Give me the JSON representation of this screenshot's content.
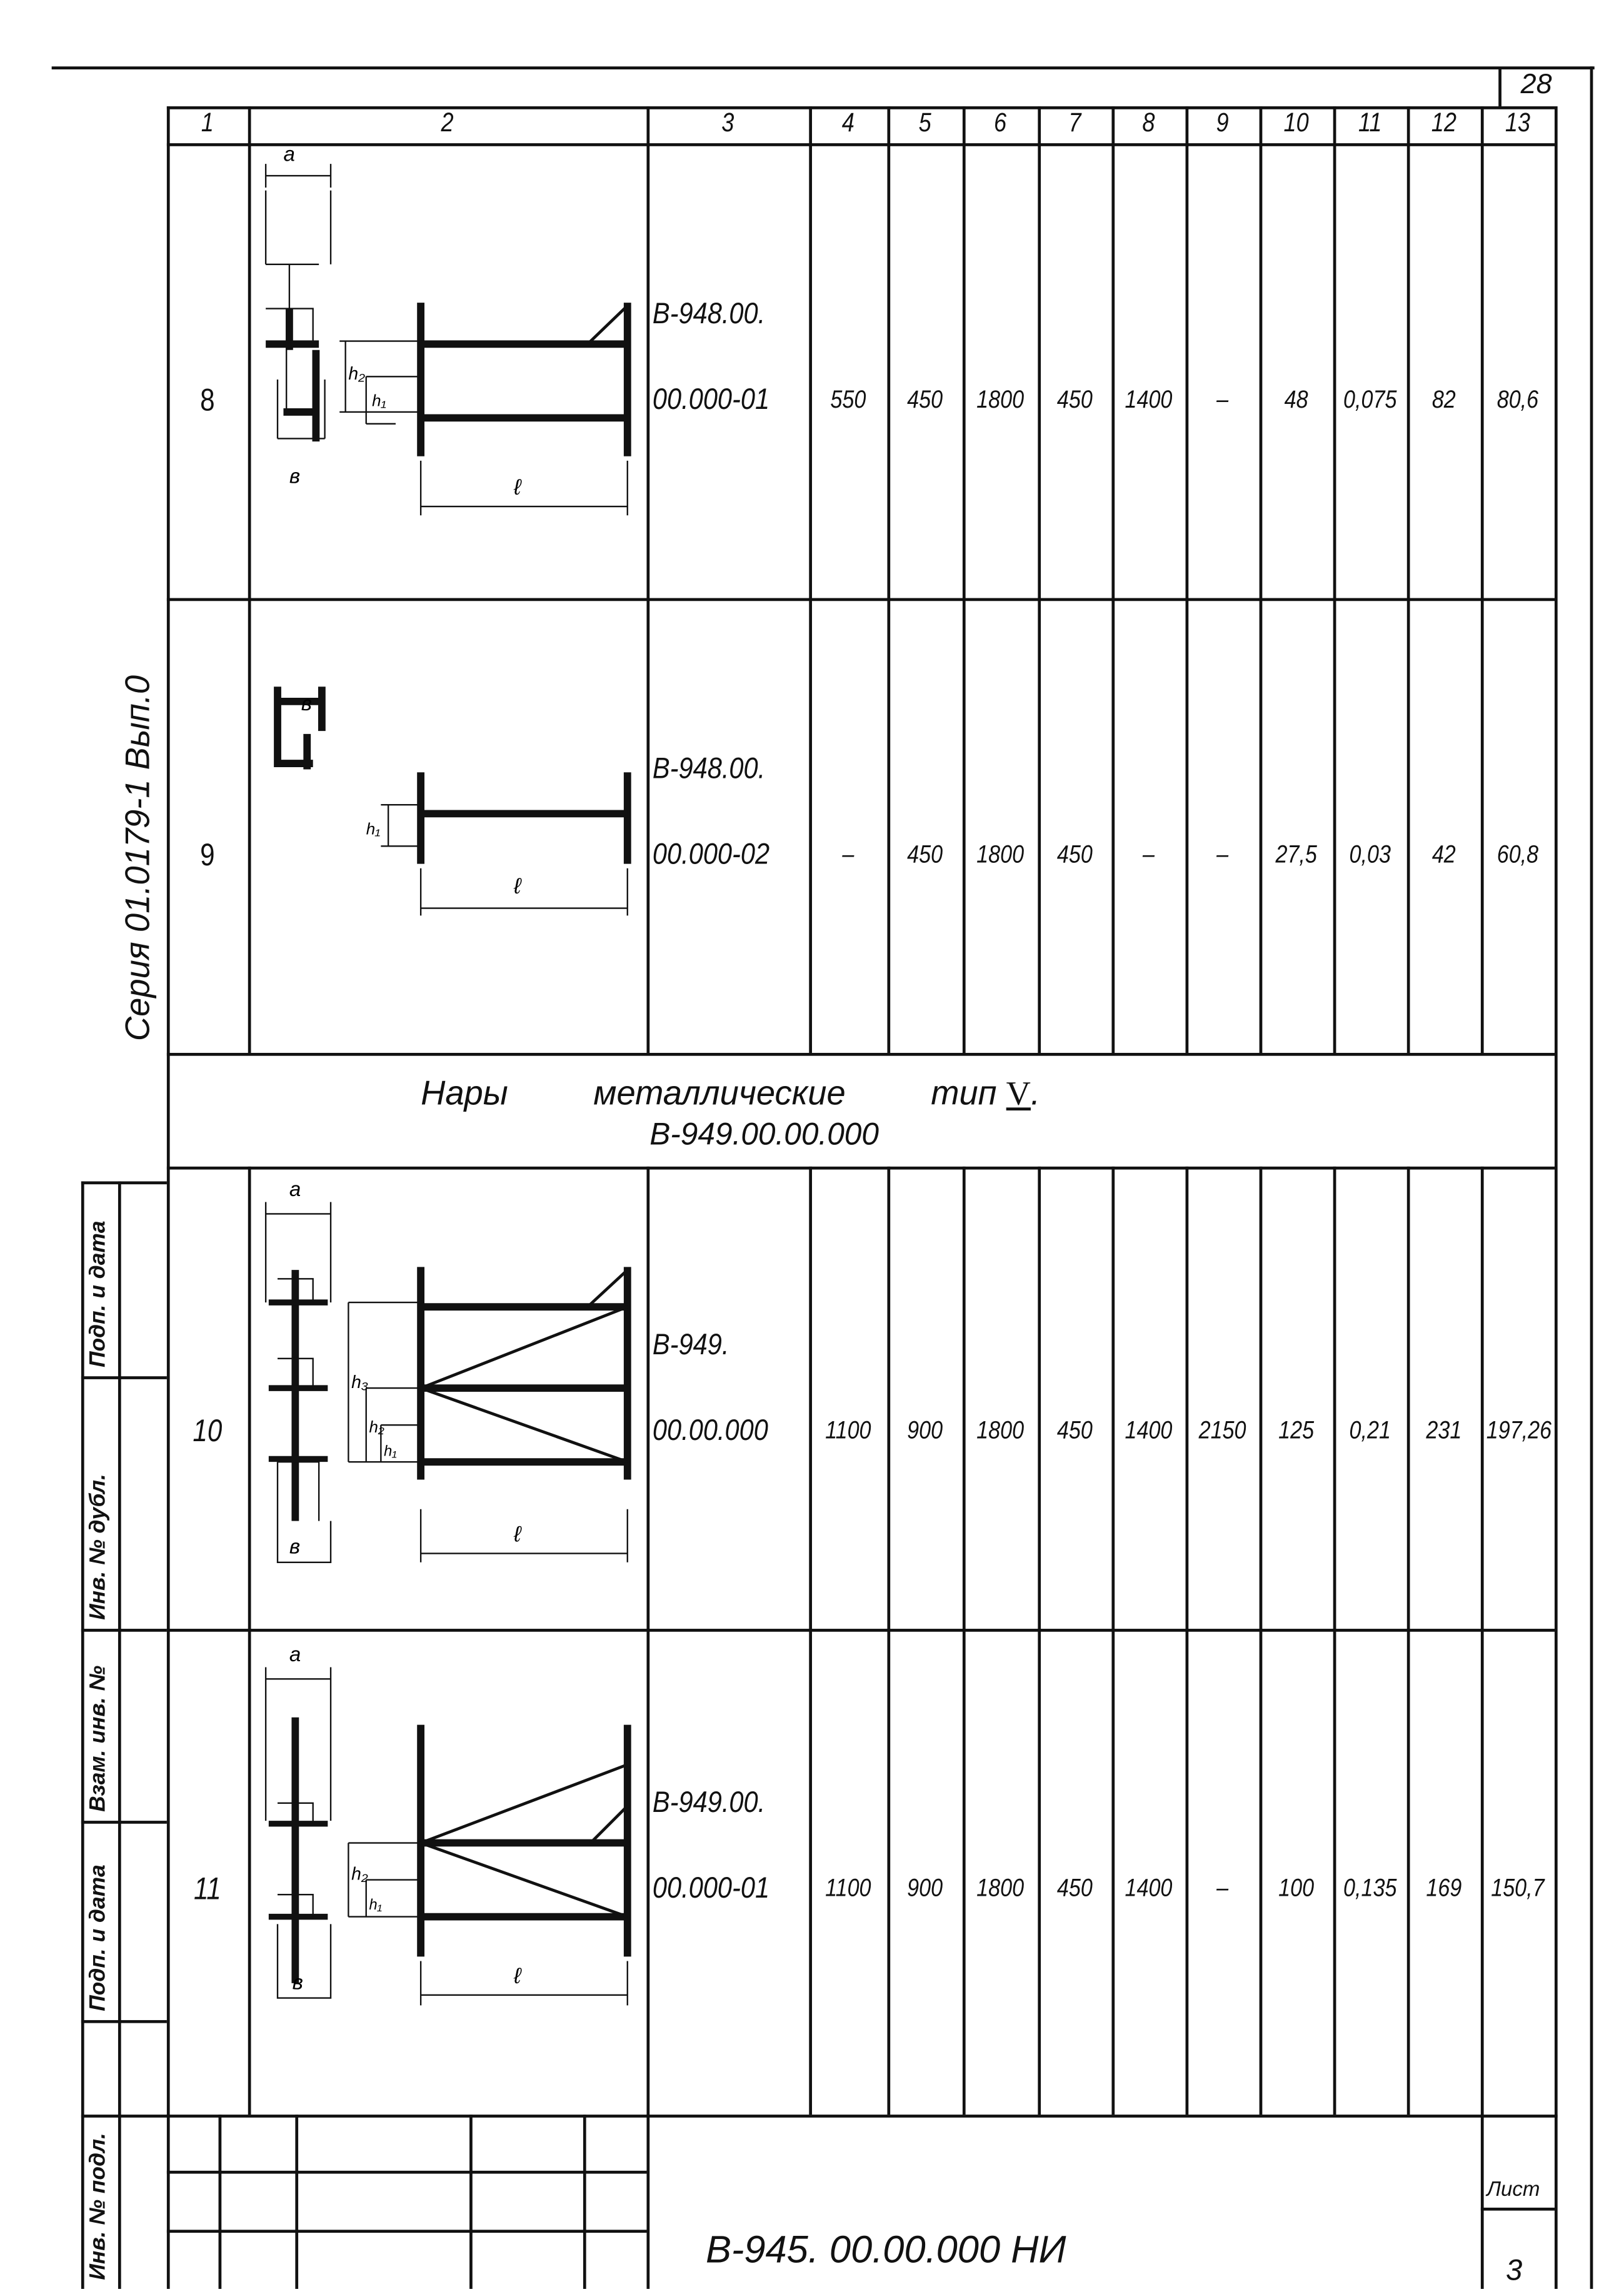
{
  "page_number": "28",
  "side_title": "Серия 01.0179-1  Вып.0",
  "columns": [
    "1",
    "2",
    "3",
    "4",
    "5",
    "6",
    "7",
    "8",
    "9",
    "10",
    "11",
    "12",
    "13"
  ],
  "rows": [
    {
      "num": "8",
      "code": [
        "B-948.00.",
        "00.000-01"
      ],
      "values": [
        "550",
        "450",
        "1800",
        "450",
        "1400",
        "–",
        "48",
        "0,075",
        "82",
        "80,6"
      ],
      "labels": [
        "a",
        "в",
        "h2",
        "h1",
        "ℓ"
      ]
    },
    {
      "num": "9",
      "code": [
        "B-948.00.",
        "00.000-02"
      ],
      "values": [
        "–",
        "450",
        "1800",
        "450",
        "–",
        "–",
        "27,5",
        "0,03",
        "42",
        "60,8"
      ],
      "labels": [
        "в",
        "h1",
        "ℓ"
      ]
    },
    {
      "num": "10",
      "code": [
        "B-949.",
        "00.00.000"
      ],
      "values": [
        "1100",
        "900",
        "1800",
        "450",
        "1400",
        "2150",
        "125",
        "0,21",
        "231",
        "197,26"
      ],
      "labels": [
        "a",
        "в",
        "h3",
        "h2",
        "h1",
        "ℓ"
      ]
    },
    {
      "num": "11",
      "code": [
        "B-949.00.",
        "00.000-01"
      ],
      "values": [
        "1100",
        "900",
        "1800",
        "450",
        "1400",
        "–",
        "100",
        "0,135",
        "169",
        "150,7"
      ],
      "labels": [
        "a",
        "в",
        "h2",
        "h1",
        "ℓ"
      ]
    }
  ],
  "section": {
    "title_words": [
      "Нары",
      "металлические",
      "тип"
    ],
    "type_numeral": "V",
    "title_end": ".",
    "code": "B-949.00.00.000"
  },
  "stamp_labels": [
    "Подп. и дата",
    "Инв. № дубл.",
    "Взам. инв. №",
    "Подп. и дата",
    "Инв. № подл."
  ],
  "title_block": {
    "doc_code": "B-945. 00.00.000  НИ",
    "sheet_label": "Лист",
    "sheet_number": "3"
  }
}
